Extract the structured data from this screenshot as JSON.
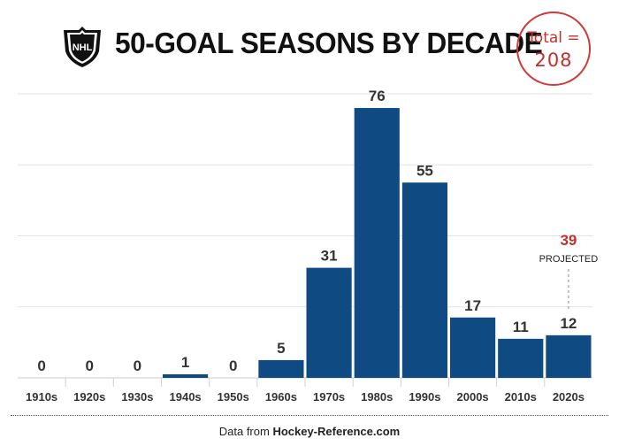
{
  "header": {
    "logo_text": "NHL",
    "title": "50-GOAL SEASONS BY DECADE",
    "total_label": "Total =",
    "total_value": "208"
  },
  "footer": {
    "source_prefix": "Data from ",
    "source_name": "Hockey-Reference.com"
  },
  "colors": {
    "bar": "#0f4a82",
    "highlight": "#c0312b",
    "grid": "#e3e3e3"
  },
  "chart_data": {
    "type": "bar",
    "title": "50-GOAL SEASONS BY DECADE",
    "categories": [
      "1910s",
      "1920s",
      "1930s",
      "1940s",
      "1950s",
      "1960s",
      "1970s",
      "1980s",
      "1990s",
      "2000s",
      "2010s",
      "2020s"
    ],
    "values": [
      0,
      0,
      0,
      1,
      0,
      5,
      31,
      76,
      55,
      17,
      11,
      12
    ],
    "ylim": [
      0,
      80
    ],
    "grid": true,
    "annotations": [
      {
        "category": "2020s",
        "value": 39,
        "label": "39",
        "note": "PROJECTED"
      }
    ]
  }
}
